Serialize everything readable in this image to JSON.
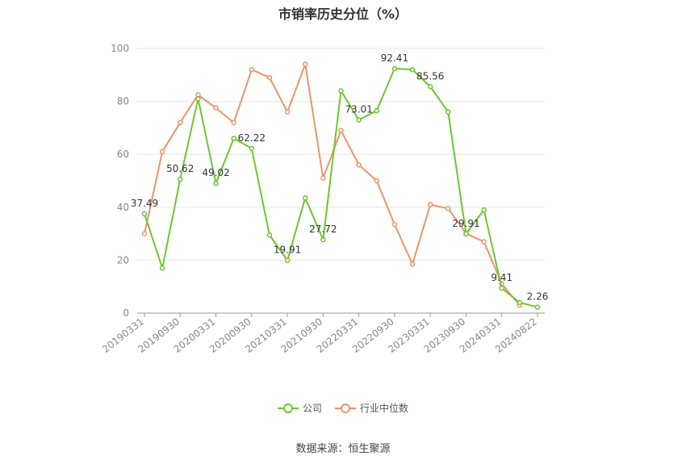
{
  "title": "市销率历史分位（%）",
  "source_text": "数据来源：恒生聚源",
  "colors": {
    "company": "#6cc72f",
    "industry": "#f0926a",
    "grid": "#e6e6e6",
    "axis": "#999999",
    "label": "#333333"
  },
  "chart_data": {
    "type": "line",
    "title": "市销率历史分位（%）",
    "ylim": [
      0,
      100
    ],
    "yticks": [
      0,
      20,
      40,
      60,
      80,
      100
    ],
    "x_tick_labels": [
      "20190331",
      "20190930",
      "20200331",
      "20200930",
      "20210331",
      "20210930",
      "20220331",
      "20220930",
      "20230331",
      "20230930",
      "20240331",
      "20240822"
    ],
    "x": [
      "20190331",
      "20190630",
      "20190930",
      "20191231",
      "20200331",
      "20200630",
      "20200930",
      "20201231",
      "20210331",
      "20210630",
      "20210930",
      "20211231",
      "20220331",
      "20220630",
      "20220930",
      "20221231",
      "20230331",
      "20230630",
      "20230930",
      "20231231",
      "20240331",
      "20240630",
      "20240822"
    ],
    "series": [
      {
        "name": "公司",
        "values": [
          37.49,
          17,
          50.62,
          81,
          49.02,
          66,
          62.22,
          29.5,
          19.91,
          43.5,
          27.72,
          84,
          73.01,
          76.5,
          92.41,
          92,
          85.56,
          76,
          29.91,
          39,
          9.41,
          4,
          2.26
        ]
      },
      {
        "name": "行业中位数",
        "values": [
          30,
          61,
          72,
          82.5,
          77.5,
          72,
          92,
          89,
          76,
          94,
          51,
          69,
          56,
          50,
          33.5,
          18.5,
          41,
          39.5,
          30,
          27,
          11,
          3,
          null
        ]
      }
    ],
    "data_labels": [
      {
        "series": 0,
        "index": 0,
        "text": "37.49"
      },
      {
        "series": 0,
        "index": 2,
        "text": "50.62"
      },
      {
        "series": 0,
        "index": 4,
        "text": "49.02"
      },
      {
        "series": 0,
        "index": 6,
        "text": "62.22"
      },
      {
        "series": 0,
        "index": 8,
        "text": "19.91"
      },
      {
        "series": 0,
        "index": 10,
        "text": "27.72"
      },
      {
        "series": 0,
        "index": 12,
        "text": "73.01"
      },
      {
        "series": 0,
        "index": 14,
        "text": "92.41"
      },
      {
        "series": 0,
        "index": 16,
        "text": "85.56"
      },
      {
        "series": 0,
        "index": 18,
        "text": "29.91"
      },
      {
        "series": 0,
        "index": 20,
        "text": "9.41"
      },
      {
        "series": 0,
        "index": 22,
        "text": "2.26"
      }
    ],
    "legend": [
      "公司",
      "行业中位数"
    ],
    "legend_position": "bottom"
  }
}
